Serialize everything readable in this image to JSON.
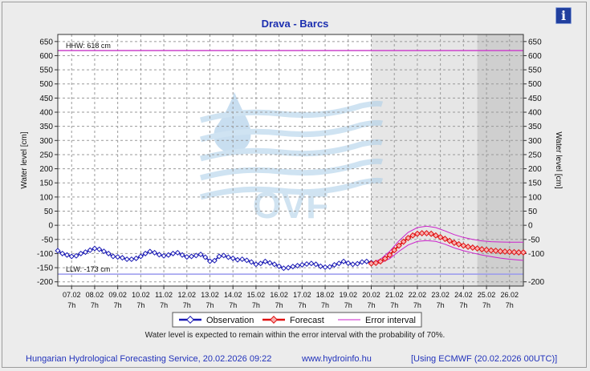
{
  "header": {
    "title": "Drava - Barcs",
    "info_icon": "info-icon"
  },
  "watermark": {
    "text": "OVF"
  },
  "note": "Water level is expected to remain within the error interval with the probability of 70%.",
  "footer": {
    "left": "Hungarian Hydrological Forecasting Service, 20.02.2026 09:22",
    "center": "www.hydroinfo.hu",
    "right": "[Using ECMWF (20.02.2026  00UTC)]"
  },
  "chart_data": {
    "type": "line",
    "title": "Drava - Barcs",
    "ylabel": "Water level [cm]",
    "ylabel_right": "Water level [cm]",
    "ylim": [
      -215,
      675
    ],
    "yticks": [
      650,
      600,
      550,
      500,
      450,
      400,
      350,
      300,
      250,
      200,
      150,
      100,
      50,
      0,
      -50,
      -100,
      -150,
      -200
    ],
    "yticks_right": [
      650,
      600,
      550,
      500,
      450,
      400,
      350,
      300,
      250,
      200,
      150,
      100,
      50,
      0,
      -50,
      -100,
      -200
    ],
    "xlim_days": [
      6.4,
      26.6
    ],
    "xtick_dates": [
      "07.02",
      "08.02",
      "09.02",
      "10.02",
      "11.02",
      "12.02",
      "13.02",
      "14.02",
      "15.02",
      "16.02",
      "17.02",
      "18.02",
      "19.02",
      "20.02",
      "21.02",
      "22.02",
      "23.02",
      "24.02",
      "25.02",
      "26.02"
    ],
    "xtick_days": [
      7,
      8,
      9,
      10,
      11,
      12,
      13,
      14,
      15,
      16,
      17,
      18,
      19,
      20,
      21,
      22,
      23,
      24,
      25,
      26
    ],
    "xtick_hour": "7h",
    "grid": true,
    "reference_lines": [
      {
        "label": "HHW: 618 cm",
        "value": 618,
        "color": "#cc44cc"
      },
      {
        "label": "LLW: -173 cm",
        "value": -173,
        "color": "#9999ee"
      }
    ],
    "shaded_regions": [
      {
        "from_day": 20.0,
        "to_day": 24.6,
        "color": "#e6e6e6"
      },
      {
        "from_day": 24.6,
        "to_day": 26.6,
        "color": "#cfcfcf"
      }
    ],
    "legend": [
      "Observation",
      "Forecast",
      "Error interval"
    ],
    "legend_position": "bottom",
    "colors": {
      "observation": "#1a1ab4",
      "forecast": "#e01010",
      "error": "#cc22cc"
    },
    "observation": {
      "x": [
        6.4,
        6.6,
        6.8,
        7.0,
        7.2,
        7.4,
        7.6,
        7.8,
        8.0,
        8.2,
        8.4,
        8.6,
        8.8,
        9.0,
        9.2,
        9.4,
        9.6,
        9.8,
        10.0,
        10.2,
        10.4,
        10.6,
        10.8,
        11.0,
        11.2,
        11.4,
        11.6,
        11.8,
        12.0,
        12.2,
        12.4,
        12.6,
        12.8,
        13.0,
        13.2,
        13.4,
        13.6,
        13.8,
        14.0,
        14.2,
        14.4,
        14.6,
        14.8,
        15.0,
        15.2,
        15.4,
        15.6,
        15.8,
        16.0,
        16.2,
        16.4,
        16.6,
        16.8,
        17.0,
        17.2,
        17.4,
        17.6,
        17.8,
        18.0,
        18.2,
        18.4,
        18.6,
        18.8,
        19.0,
        19.2,
        19.4,
        19.6,
        19.8,
        20.0
      ],
      "y": [
        -90,
        -100,
        -105,
        -110,
        -108,
        -100,
        -95,
        -88,
        -82,
        -85,
        -92,
        -100,
        -110,
        -112,
        -115,
        -120,
        -120,
        -117,
        -110,
        -100,
        -93,
        -97,
        -104,
        -108,
        -105,
        -100,
        -97,
        -105,
        -112,
        -110,
        -107,
        -103,
        -113,
        -127,
        -125,
        -110,
        -107,
        -113,
        -117,
        -122,
        -120,
        -124,
        -130,
        -138,
        -135,
        -128,
        -133,
        -138,
        -145,
        -152,
        -150,
        -146,
        -143,
        -140,
        -137,
        -135,
        -138,
        -145,
        -148,
        -147,
        -140,
        -135,
        -128,
        -134,
        -138,
        -136,
        -130,
        -128,
        -132
      ]
    },
    "forecast": {
      "x": [
        20.0,
        20.2,
        20.4,
        20.6,
        20.8,
        21.0,
        21.2,
        21.4,
        21.6,
        21.8,
        22.0,
        22.2,
        22.4,
        22.6,
        22.8,
        23.0,
        23.2,
        23.4,
        23.6,
        23.8,
        24.0,
        24.2,
        24.4,
        24.6,
        24.8,
        25.0,
        25.2,
        25.4,
        25.6,
        25.8,
        26.0,
        26.2,
        26.4,
        26.6
      ],
      "y": [
        -135,
        -133,
        -128,
        -118,
        -105,
        -88,
        -72,
        -58,
        -45,
        -36,
        -30,
        -28,
        -28,
        -30,
        -36,
        -42,
        -48,
        -55,
        -62,
        -67,
        -72,
        -76,
        -79,
        -82,
        -85,
        -87,
        -89,
        -90,
        -92,
        -93,
        -94,
        -95,
        -96,
        -96
      ]
    },
    "error_upper": {
      "x": [
        20.0,
        20.4,
        20.8,
        21.2,
        21.6,
        22.0,
        22.4,
        22.8,
        23.2,
        23.6,
        24.0,
        24.4,
        24.8,
        25.2,
        25.6,
        26.0,
        26.4,
        26.6
      ],
      "y": [
        -133,
        -120,
        -92,
        -55,
        -25,
        -8,
        -3,
        -8,
        -20,
        -33,
        -43,
        -50,
        -55,
        -58,
        -59,
        -60,
        -60,
        -60
      ]
    },
    "error_lower": {
      "x": [
        20.0,
        20.4,
        20.8,
        21.2,
        21.6,
        22.0,
        22.4,
        22.8,
        23.2,
        23.6,
        24.0,
        24.4,
        24.8,
        25.2,
        25.6,
        26.0,
        26.4,
        26.6
      ],
      "y": [
        -137,
        -133,
        -118,
        -92,
        -70,
        -57,
        -54,
        -57,
        -67,
        -80,
        -90,
        -98,
        -105,
        -111,
        -116,
        -120,
        -123,
        -124
      ]
    }
  }
}
